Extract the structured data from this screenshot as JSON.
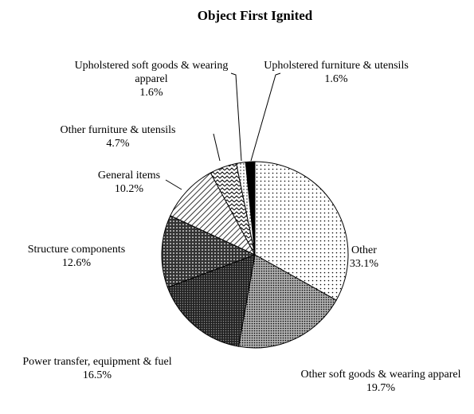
{
  "chart_data": {
    "type": "pie",
    "title": "Object First Ignited",
    "categories": [
      "Other",
      "Other soft goods & wearing apparel",
      "Power transfer, equipment & fuel",
      "Structure components",
      "General items",
      "Other furniture & utensils",
      "Upholstered soft goods & wearing apparel",
      "Upholstered furniture & utensils"
    ],
    "values": [
      33.1,
      19.7,
      16.5,
      12.6,
      10.2,
      4.7,
      1.6,
      1.6
    ],
    "value_labels": [
      "33.1%",
      "19.7%",
      "16.5%",
      "12.6%",
      "10.2%",
      "4.7%",
      "1.6%",
      "1.6%"
    ],
    "colors": [
      "#ffffff",
      "#b0b0b0",
      "#404040",
      "#5a5a5a",
      "#ffffff",
      "#ffffff",
      "#ffffff",
      "#000000"
    ]
  }
}
